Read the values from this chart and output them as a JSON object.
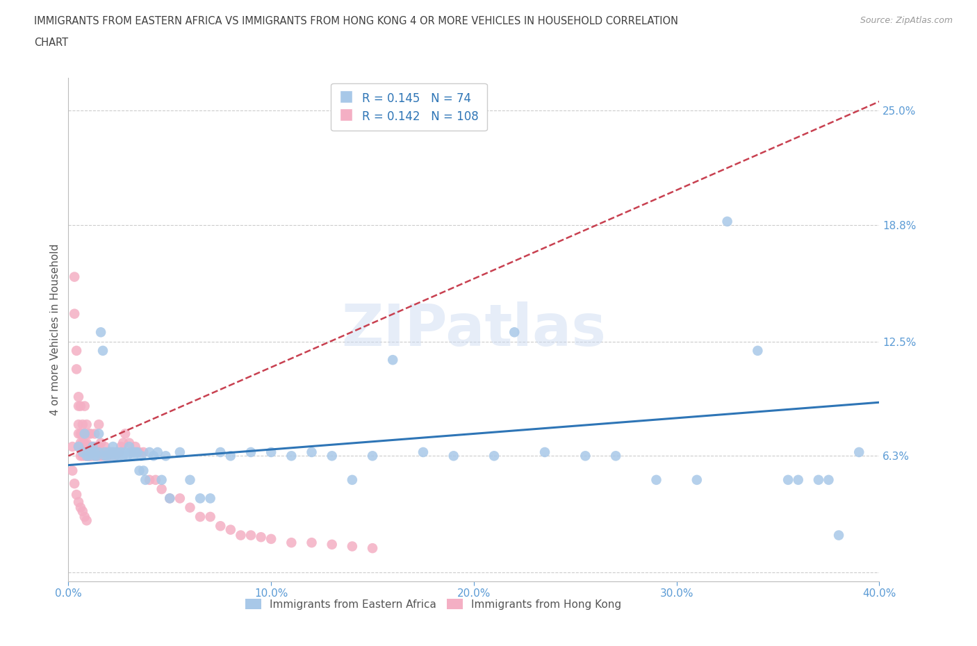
{
  "title_line1": "IMMIGRANTS FROM EASTERN AFRICA VS IMMIGRANTS FROM HONG KONG 4 OR MORE VEHICLES IN HOUSEHOLD CORRELATION",
  "title_line2": "CHART",
  "source": "Source: ZipAtlas.com",
  "watermark": "ZIPatlas",
  "ylabel": "4 or more Vehicles in Household",
  "xlim": [
    0.0,
    0.4
  ],
  "ylim": [
    -0.005,
    0.268
  ],
  "yticks": [
    0.0,
    0.063,
    0.125,
    0.188,
    0.25
  ],
  "ytick_labels": [
    "",
    "6.3%",
    "12.5%",
    "18.8%",
    "25.0%"
  ],
  "xticks": [
    0.0,
    0.1,
    0.2,
    0.3,
    0.4
  ],
  "xtick_labels": [
    "0.0%",
    "10.0%",
    "20.0%",
    "30.0%",
    "40.0%"
  ],
  "series_blue_label": "Immigrants from Eastern Africa",
  "series_pink_label": "Immigrants from Hong Kong",
  "blue_R": 0.145,
  "blue_N": 74,
  "pink_R": 0.142,
  "pink_N": 108,
  "blue_color": "#a8c8e8",
  "pink_color": "#f4afc4",
  "blue_line_color": "#2e75b6",
  "pink_line_color": "#c84050",
  "axis_color": "#5b9bd5",
  "legend_text_color": "#2e75b6",
  "title_color": "#404040",
  "background_color": "#ffffff",
  "grid_color": "#cccccc",
  "blue_x": [
    0.005,
    0.007,
    0.008,
    0.009,
    0.01,
    0.011,
    0.012,
    0.013,
    0.013,
    0.014,
    0.015,
    0.015,
    0.016,
    0.017,
    0.018,
    0.018,
    0.019,
    0.02,
    0.021,
    0.022,
    0.022,
    0.023,
    0.024,
    0.025,
    0.026,
    0.027,
    0.028,
    0.029,
    0.03,
    0.031,
    0.032,
    0.033,
    0.034,
    0.035,
    0.036,
    0.037,
    0.038,
    0.04,
    0.042,
    0.044,
    0.046,
    0.048,
    0.05,
    0.055,
    0.06,
    0.065,
    0.07,
    0.075,
    0.08,
    0.09,
    0.1,
    0.11,
    0.12,
    0.13,
    0.14,
    0.15,
    0.16,
    0.175,
    0.19,
    0.21,
    0.22,
    0.235,
    0.255,
    0.27,
    0.29,
    0.31,
    0.325,
    0.34,
    0.355,
    0.36,
    0.37,
    0.375,
    0.38,
    0.39
  ],
  "blue_y": [
    0.068,
    0.065,
    0.075,
    0.063,
    0.063,
    0.065,
    0.068,
    0.065,
    0.063,
    0.063,
    0.065,
    0.075,
    0.13,
    0.12,
    0.065,
    0.063,
    0.063,
    0.065,
    0.063,
    0.065,
    0.068,
    0.063,
    0.065,
    0.063,
    0.065,
    0.063,
    0.065,
    0.063,
    0.068,
    0.065,
    0.063,
    0.065,
    0.065,
    0.055,
    0.063,
    0.055,
    0.05,
    0.065,
    0.063,
    0.065,
    0.05,
    0.063,
    0.04,
    0.065,
    0.05,
    0.04,
    0.04,
    0.065,
    0.063,
    0.065,
    0.065,
    0.063,
    0.065,
    0.063,
    0.05,
    0.063,
    0.115,
    0.065,
    0.063,
    0.063,
    0.13,
    0.065,
    0.063,
    0.063,
    0.05,
    0.05,
    0.19,
    0.12,
    0.05,
    0.05,
    0.05,
    0.05,
    0.02,
    0.065
  ],
  "pink_x": [
    0.002,
    0.003,
    0.003,
    0.004,
    0.004,
    0.005,
    0.005,
    0.005,
    0.005,
    0.005,
    0.006,
    0.006,
    0.006,
    0.006,
    0.006,
    0.007,
    0.007,
    0.007,
    0.007,
    0.007,
    0.007,
    0.008,
    0.008,
    0.008,
    0.008,
    0.008,
    0.009,
    0.009,
    0.009,
    0.009,
    0.009,
    0.009,
    0.01,
    0.01,
    0.01,
    0.01,
    0.01,
    0.011,
    0.011,
    0.011,
    0.011,
    0.011,
    0.012,
    0.012,
    0.012,
    0.013,
    0.013,
    0.013,
    0.013,
    0.014,
    0.014,
    0.014,
    0.015,
    0.015,
    0.015,
    0.015,
    0.016,
    0.016,
    0.016,
    0.017,
    0.017,
    0.018,
    0.018,
    0.018,
    0.019,
    0.019,
    0.02,
    0.02,
    0.021,
    0.022,
    0.023,
    0.024,
    0.025,
    0.026,
    0.027,
    0.028,
    0.03,
    0.032,
    0.033,
    0.035,
    0.037,
    0.04,
    0.043,
    0.046,
    0.05,
    0.055,
    0.06,
    0.065,
    0.07,
    0.075,
    0.08,
    0.085,
    0.09,
    0.095,
    0.1,
    0.11,
    0.12,
    0.13,
    0.14,
    0.15,
    0.002,
    0.003,
    0.004,
    0.005,
    0.006,
    0.007,
    0.008,
    0.009
  ],
  "pink_y": [
    0.068,
    0.14,
    0.16,
    0.11,
    0.12,
    0.068,
    0.075,
    0.08,
    0.09,
    0.095,
    0.063,
    0.068,
    0.07,
    0.075,
    0.09,
    0.063,
    0.065,
    0.068,
    0.07,
    0.075,
    0.08,
    0.063,
    0.065,
    0.068,
    0.07,
    0.09,
    0.063,
    0.063,
    0.065,
    0.068,
    0.07,
    0.08,
    0.063,
    0.063,
    0.065,
    0.068,
    0.075,
    0.063,
    0.063,
    0.065,
    0.068,
    0.075,
    0.063,
    0.065,
    0.068,
    0.063,
    0.065,
    0.068,
    0.075,
    0.063,
    0.065,
    0.068,
    0.063,
    0.065,
    0.068,
    0.08,
    0.063,
    0.065,
    0.07,
    0.063,
    0.065,
    0.063,
    0.065,
    0.068,
    0.063,
    0.065,
    0.063,
    0.065,
    0.065,
    0.065,
    0.063,
    0.065,
    0.065,
    0.068,
    0.07,
    0.075,
    0.07,
    0.065,
    0.068,
    0.065,
    0.065,
    0.05,
    0.05,
    0.045,
    0.04,
    0.04,
    0.035,
    0.03,
    0.03,
    0.025,
    0.023,
    0.02,
    0.02,
    0.019,
    0.018,
    0.016,
    0.016,
    0.015,
    0.014,
    0.013,
    0.055,
    0.048,
    0.042,
    0.038,
    0.035,
    0.033,
    0.03,
    0.028
  ],
  "blue_trend_x": [
    0.0,
    0.4
  ],
  "blue_trend_y": [
    0.058,
    0.092
  ],
  "pink_trend_x": [
    0.0,
    0.4
  ],
  "pink_trend_y": [
    0.063,
    0.255
  ]
}
